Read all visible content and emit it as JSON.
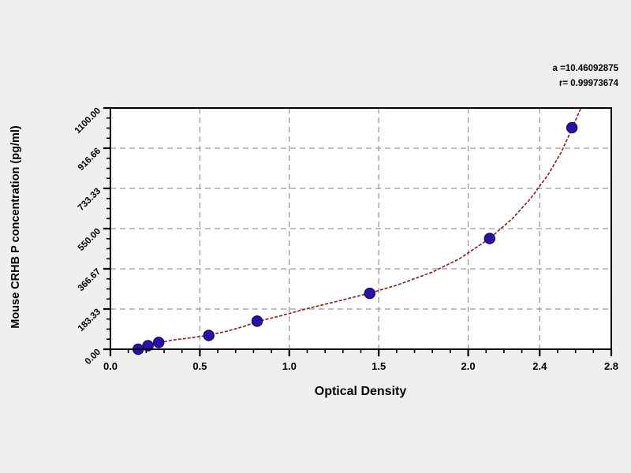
{
  "page": {
    "background": "#f0efed",
    "plot_background": "#ffffff"
  },
  "chart_data": {
    "type": "scatter",
    "title": "",
    "xlabel": "Optical Density",
    "ylabel": "Mouse CRHB P concentration (pg/ml)",
    "xlim": [
      0,
      2.8
    ],
    "ylim": [
      0,
      1100
    ],
    "grid": "dashed",
    "legend_position": "none",
    "x_major_ticks": [
      0,
      0.5,
      1.0,
      1.5,
      2.0,
      2.4,
      2.8
    ],
    "x_tick_labels": [
      "0.0",
      "0.5",
      "1.0",
      "1.5",
      "2.0",
      "2.4",
      "2.8"
    ],
    "x_minor_step": 0.1,
    "y_major_ticks": [
      0,
      183.33,
      366.67,
      550,
      733.33,
      916.66,
      1100
    ],
    "y_tick_labels": [
      "0.00",
      "183.33",
      "366.67",
      "550.00",
      "733.33",
      "916.66",
      "1100.00"
    ],
    "y_minor_divisions": 4,
    "annotation": {
      "line1": "a =10.46092875",
      "line2": "r= 0.99973674"
    },
    "points": [
      {
        "od": 0.155,
        "conc": 0
      },
      {
        "od": 0.21,
        "conc": 16
      },
      {
        "od": 0.27,
        "conc": 31
      },
      {
        "od": 0.55,
        "conc": 63
      },
      {
        "od": 0.82,
        "conc": 128
      },
      {
        "od": 1.45,
        "conc": 255
      },
      {
        "od": 2.12,
        "conc": 505
      },
      {
        "od": 2.58,
        "conc": 1010
      }
    ],
    "curve_fit_samples": [
      [
        0.12,
        0
      ],
      [
        0.18,
        8
      ],
      [
        0.21,
        15
      ],
      [
        0.27,
        30
      ],
      [
        0.35,
        42
      ],
      [
        0.45,
        52
      ],
      [
        0.55,
        64
      ],
      [
        0.65,
        82
      ],
      [
        0.75,
        105
      ],
      [
        0.82,
        126
      ],
      [
        0.95,
        152
      ],
      [
        1.1,
        185
      ],
      [
        1.3,
        225
      ],
      [
        1.45,
        256
      ],
      [
        1.6,
        292
      ],
      [
        1.8,
        352
      ],
      [
        1.95,
        412
      ],
      [
        2.12,
        505
      ],
      [
        2.25,
        598
      ],
      [
        2.35,
        688
      ],
      [
        2.45,
        800
      ],
      [
        2.52,
        898
      ],
      [
        2.58,
        1005
      ],
      [
        2.63,
        1100
      ]
    ],
    "colors": {
      "point": "#2a13a4",
      "point_edge": "#1b0b73",
      "curve": "#8b2727",
      "grid": "#9a9a9a",
      "axis": "#000000",
      "text": "#000000"
    }
  }
}
